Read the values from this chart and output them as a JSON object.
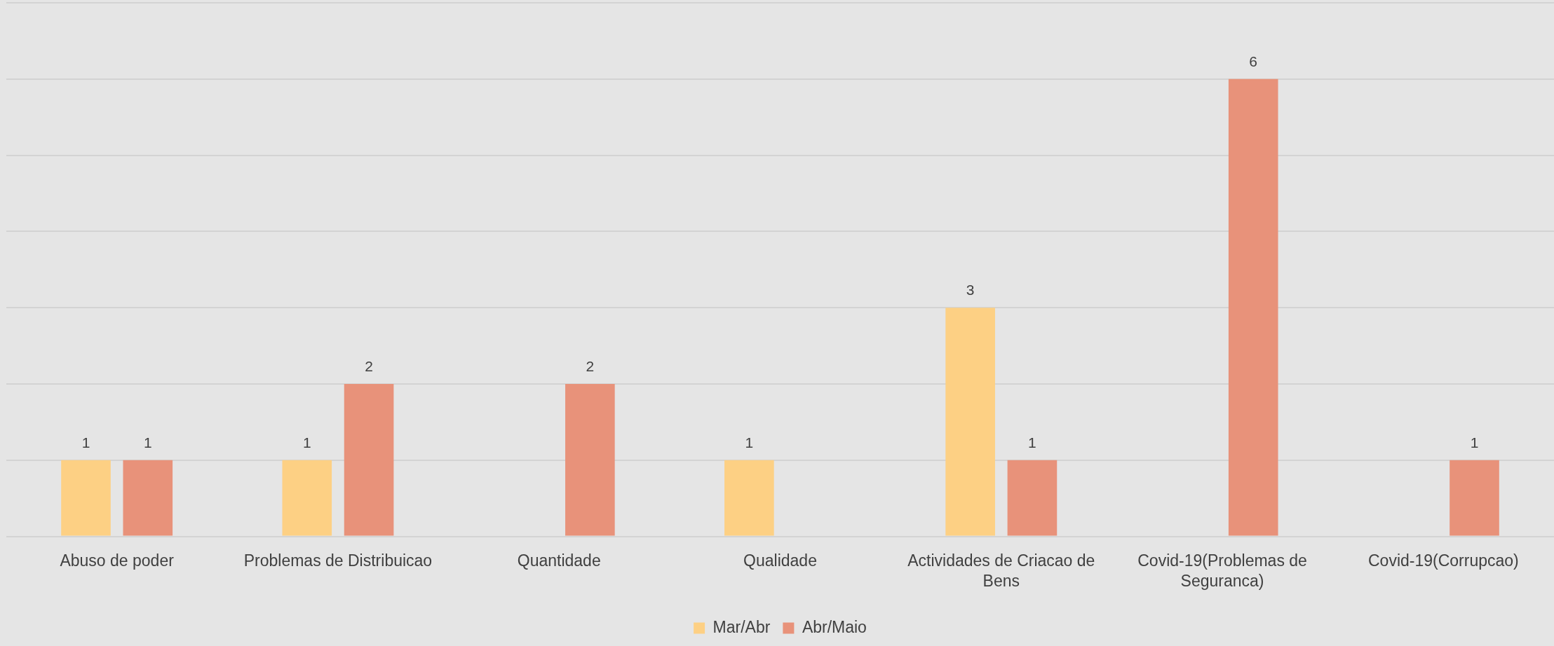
{
  "chart_data": {
    "type": "bar",
    "categories": [
      "Abuso de poder",
      "Problemas de Distribuicao",
      "Quantidade",
      "Qualidade",
      "Actividades de Criacao de Bens",
      "Covid-19(Problemas de Seguranca)",
      "Covid-19(Corrupcao)"
    ],
    "series": [
      {
        "name": "Mar/Abr",
        "color": "#fdd084",
        "values": [
          1,
          1,
          null,
          1,
          3,
          null,
          null
        ]
      },
      {
        "name": "Abr/Maio",
        "color": "#e8927a",
        "values": [
          1,
          2,
          2,
          null,
          1,
          6,
          1
        ]
      }
    ],
    "ylim": [
      0,
      7
    ],
    "yticks": [
      {
        "value": 0,
        "label": null
      },
      {
        "value": 1,
        "label": null
      },
      {
        "value": 2,
        "label": null
      },
      {
        "value": 3,
        "label": null
      },
      {
        "value": 4,
        "label": null
      },
      {
        "value": 5,
        "label": null
      },
      {
        "value": 6,
        "label": null
      },
      {
        "value": 7,
        "label": null
      }
    ],
    "grid": "y",
    "legend": "bottom",
    "tick_labels": "x",
    "data_labels": true
  }
}
